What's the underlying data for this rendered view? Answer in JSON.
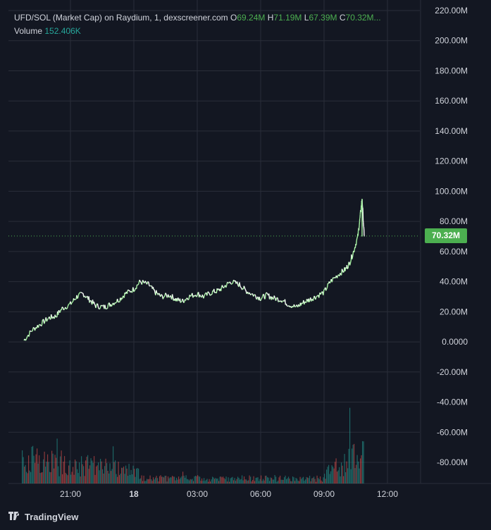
{
  "legend": {
    "title": "UFD/SOL (Market Cap) on Raydium, 1, dexscreener.com",
    "o_label": "O",
    "o_value": "69.24M",
    "h_label": "H",
    "h_value": "71.19M",
    "l_label": "L",
    "l_value": "67.39M",
    "c_label": "C",
    "c_value": "70.32M...",
    "volume_label": "Volume",
    "volume_value": "152.406K"
  },
  "footer": {
    "logo_text": "TradingView"
  },
  "colors": {
    "background": "#131722",
    "grid": "#2a2e39",
    "up": "#26a69a",
    "down": "#ef5350",
    "price_line": "#4caf50",
    "axis_text": "#d1d4dc"
  },
  "chart_data": {
    "type": "line",
    "title": "UFD/SOL (Market Cap) on Raydium, 1, dexscreener.com",
    "y_axis": {
      "ticks": [
        "220.00M",
        "200.00M",
        "180.00M",
        "160.00M",
        "140.00M",
        "120.00M",
        "100.00M",
        "80.00M",
        "60.00M",
        "40.00M",
        "20.00M",
        "0.0000",
        "-20.00M",
        "-40.00M",
        "-60.00M",
        "-80.00M"
      ],
      "tick_values": [
        220,
        200,
        180,
        160,
        140,
        120,
        100,
        80,
        60,
        40,
        20,
        0,
        -20,
        -40,
        -60,
        -80
      ],
      "unit": "M",
      "ylim": [
        -93,
        222
      ]
    },
    "x_axis": {
      "ticks": [
        "21:00",
        "18",
        "03:00",
        "06:00",
        "09:00",
        "12:00"
      ],
      "tick_hours": [
        21,
        24,
        27,
        30,
        33,
        36
      ],
      "xlim": [
        18.0,
        37.3
      ]
    },
    "last_price_label": "70.32M",
    "last_price": 70.32,
    "series": [
      {
        "x": [
          18.8,
          19.2,
          19.6,
          20.0,
          20.3,
          20.6,
          21.0,
          21.3,
          21.6,
          21.9,
          22.2,
          22.6,
          22.9,
          23.3,
          23.6,
          24.0,
          24.3,
          24.7,
          25.0,
          25.3,
          25.7,
          26.0,
          26.3,
          26.6,
          27.0,
          27.3,
          27.7,
          28.0,
          28.3,
          28.6,
          29.0,
          29.3,
          29.7,
          30.0,
          30.3,
          30.6,
          31.0,
          31.3,
          31.7,
          32.0,
          32.3,
          32.6,
          33.0,
          33.3,
          33.7,
          34.0,
          34.2,
          34.4,
          34.6,
          34.7,
          34.8,
          34.9
        ],
        "y": [
          1,
          8,
          12,
          16,
          17,
          22,
          25,
          30,
          32,
          28,
          24,
          23,
          25,
          28,
          32,
          35,
          40,
          38,
          33,
          30,
          31,
          28,
          27,
          30,
          32,
          30,
          33,
          34,
          37,
          40,
          38,
          34,
          31,
          29,
          31,
          29,
          28,
          25,
          23,
          26,
          28,
          30,
          33,
          40,
          45,
          48,
          52,
          60,
          70,
          82,
          95,
          70
        ]
      }
    ],
    "volume": {
      "unit": "K",
      "last_value": 152.406
    }
  }
}
